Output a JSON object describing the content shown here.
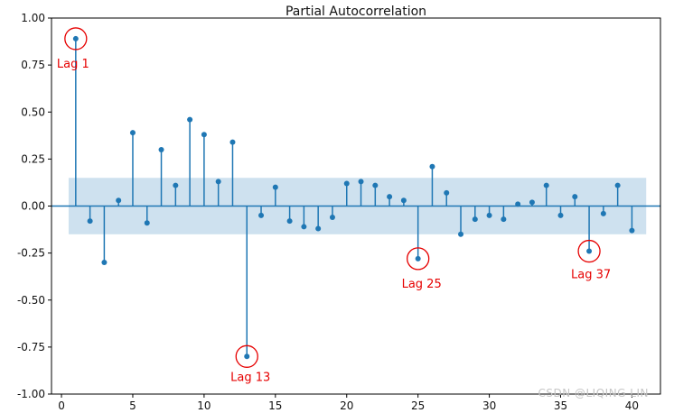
{
  "figure": {
    "watermark": "CSDN @LIQING LIN",
    "background": "#ffffff"
  },
  "chart_data": {
    "type": "stem",
    "title": "Partial Autocorrelation",
    "xlabel": "",
    "ylabel": "",
    "xlim": [
      -0.7,
      42.0
    ],
    "ylim": [
      -1.0,
      1.0
    ],
    "grid": false,
    "legend": null,
    "x_ticks": [
      0,
      5,
      10,
      15,
      20,
      25,
      30,
      35,
      40
    ],
    "x_tick_labels": [
      "0",
      "5",
      "10",
      "15",
      "20",
      "25",
      "30",
      "35",
      "40"
    ],
    "y_ticks": [
      -1.0,
      -0.75,
      -0.5,
      -0.25,
      0.0,
      0.25,
      0.5,
      0.75,
      1.0
    ],
    "y_tick_labels": [
      "-1.00",
      "-0.75",
      "-0.50",
      "-0.25",
      "0.00",
      "0.25",
      "0.50",
      "0.75",
      "1.00"
    ],
    "lags": [
      1,
      2,
      3,
      4,
      5,
      6,
      7,
      8,
      9,
      10,
      11,
      12,
      13,
      14,
      15,
      16,
      17,
      18,
      19,
      20,
      21,
      22,
      23,
      24,
      25,
      26,
      27,
      28,
      29,
      30,
      31,
      32,
      33,
      34,
      35,
      36,
      37,
      38,
      39,
      40
    ],
    "values": [
      0.89,
      -0.08,
      -0.3,
      0.03,
      0.39,
      -0.09,
      0.3,
      0.11,
      0.46,
      0.38,
      0.13,
      0.34,
      -0.8,
      -0.05,
      0.1,
      -0.08,
      -0.11,
      -0.12,
      -0.06,
      0.12,
      0.13,
      0.11,
      0.05,
      0.03,
      -0.28,
      0.21,
      0.07,
      -0.15,
      -0.07,
      -0.05,
      -0.07,
      0.01,
      0.02,
      0.11,
      -0.05,
      0.05,
      -0.24,
      -0.04,
      0.11,
      -0.13
    ],
    "confidence_band": {
      "x0": 0.5,
      "x1": 41.0,
      "y0": -0.15,
      "y1": 0.15
    },
    "annotations": [
      {
        "lag": 1,
        "label": "Lag 1",
        "circle_radius": 12,
        "label_offset": [
          -3,
          32
        ]
      },
      {
        "lag": 13,
        "label": "Lag 13",
        "circle_radius": 12,
        "label_offset": [
          4,
          27
        ]
      },
      {
        "lag": 25,
        "label": "Lag 25",
        "circle_radius": 12,
        "label_offset": [
          4,
          32
        ]
      },
      {
        "lag": 37,
        "label": "Lag 37",
        "circle_radius": 12,
        "label_offset": [
          2,
          30
        ]
      }
    ],
    "colors": {
      "stem": "#1f77b4",
      "marker": "#1f77b4",
      "zero_line": "#1f77b4",
      "band": "#1f77b4",
      "band_opacity": 0.22,
      "annotation": "#e60000",
      "axis": "#000000",
      "tick_label": "#111111",
      "watermark": "#c6c6c6"
    }
  }
}
